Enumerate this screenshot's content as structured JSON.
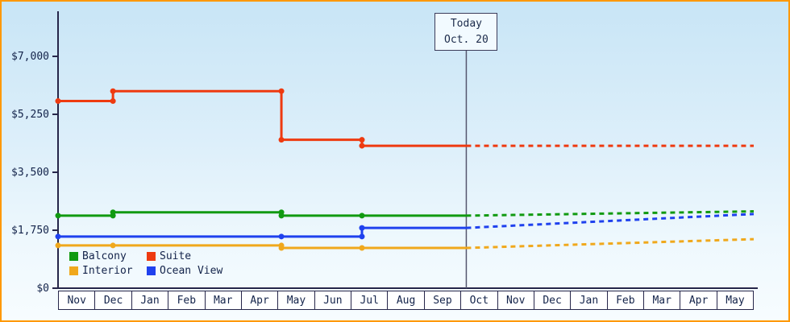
{
  "chart_data": {
    "type": "line",
    "title": "",
    "subtitle": "",
    "today_marker": {
      "line1": "Today",
      "line2": "Oct. 20",
      "t": 11.15
    },
    "y_axis": {
      "max_value": 7000,
      "ticks": [
        {
          "label": "$0",
          "value": 0
        },
        {
          "label": "$1,750",
          "value": 1750
        },
        {
          "label": "$3,500",
          "value": 3500
        },
        {
          "label": "$5,250",
          "value": 5250
        },
        {
          "label": "$7,000",
          "value": 7000
        }
      ]
    },
    "x_axis": {
      "months": [
        "Nov",
        "Dec",
        "Jan",
        "Feb",
        "Mar",
        "Apr",
        "May",
        "Jun",
        "Jul",
        "Aug",
        "Sep",
        "Oct",
        "Nov",
        "Dec",
        "Jan",
        "Feb",
        "Mar",
        "Apr",
        "May"
      ],
      "t_end": 19
    },
    "series": [
      {
        "name": "Balcony",
        "color": "#119a11",
        "solid_points": [
          [
            0,
            2190
          ],
          [
            1.5,
            2290
          ],
          [
            6.1,
            2190
          ],
          [
            8.3,
            2190
          ]
        ],
        "projected_end_value": 2320
      },
      {
        "name": "Suite",
        "color": "#ee3a10",
        "solid_points": [
          [
            0,
            5650
          ],
          [
            1.5,
            5950
          ],
          [
            6.1,
            4480
          ],
          [
            8.3,
            4300
          ]
        ],
        "projected_end_value": 4300
      },
      {
        "name": "Interior",
        "color": "#f0a81c",
        "solid_points": [
          [
            0,
            1290
          ],
          [
            1.5,
            1290
          ],
          [
            6.1,
            1215
          ],
          [
            8.3,
            1215
          ]
        ],
        "projected_end_value": 1480
      },
      {
        "name": "Ocean View",
        "color": "#1f41ee",
        "solid_points": [
          [
            0,
            1560
          ],
          [
            6.1,
            1560
          ],
          [
            8.3,
            1820
          ]
        ],
        "projected_end_value": 2240
      }
    ],
    "legend_order": [
      0,
      1,
      2,
      3
    ],
    "grid": "off",
    "legend_position": "bottom-left-inside"
  },
  "colors": {
    "frame_border": "#ff9800",
    "axis": "#26264a",
    "text": "#13234a",
    "today_line": "#55566e",
    "month_box_bg": "#ffffff"
  }
}
